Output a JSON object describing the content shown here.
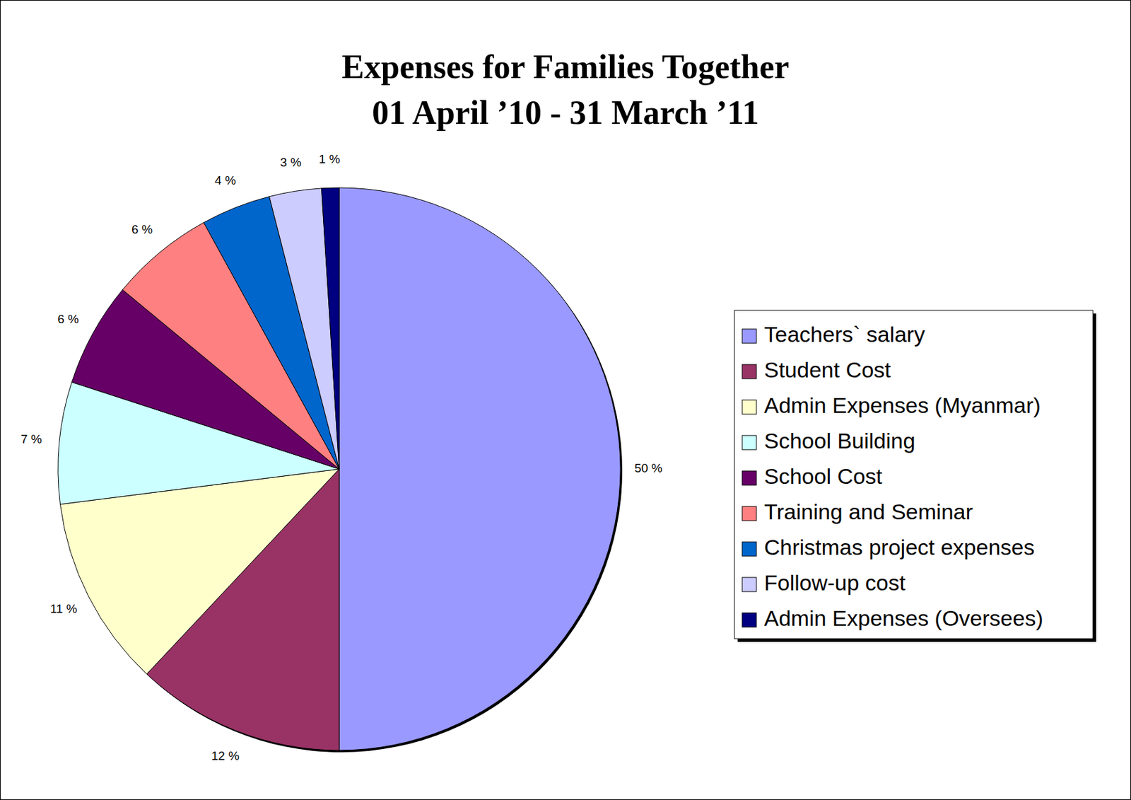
{
  "chart_data": {
    "type": "pie",
    "title": "Expenses for Families Together",
    "subtitle": "01 April ’10 - 31 March ’11",
    "categories": [
      "Teachers` salary",
      "Student Cost",
      "Admin Expenses (Myanmar)",
      "School Building",
      "School Cost",
      "Training and Seminar",
      "Christmas project expenses",
      "Follow-up cost",
      "Admin Expenses (Oversees)"
    ],
    "values": [
      50,
      12,
      11,
      7,
      6,
      6,
      4,
      3,
      1
    ],
    "value_labels": [
      "50 %",
      "12 %",
      "11 %",
      "7 %",
      "6 %",
      "6 %",
      "4 %",
      "3 %",
      "1 %"
    ],
    "colors": [
      "#9999ff",
      "#993366",
      "#ffffcc",
      "#ccffff",
      "#660066",
      "#ff8080",
      "#0066cc",
      "#ccccff",
      "#000080"
    ],
    "data_labels": true,
    "legend": "right"
  }
}
